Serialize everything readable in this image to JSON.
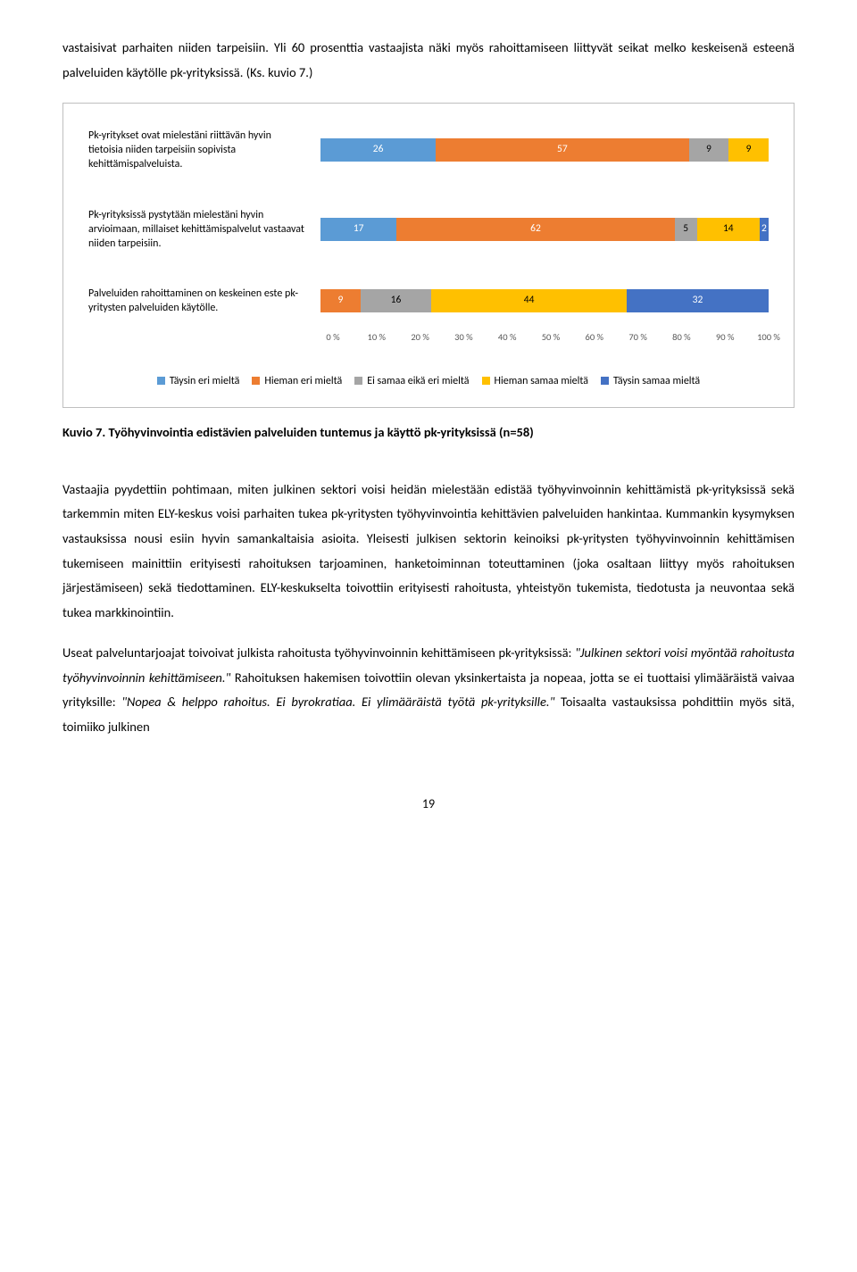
{
  "colors": {
    "c1": "#5b9bd5",
    "c2": "#ed7d31",
    "c3": "#a5a5a5",
    "c4": "#ffc000",
    "c5": "#4472c4",
    "grid": "#d9d9d9",
    "border": "#bfbfbf"
  },
  "intro": "vastaisivat parhaiten niiden tarpeisiin. Yli 60 prosenttia vastaajista näki myös rahoittamiseen liittyvät seikat melko keskeisenä esteenä palveluiden käytölle pk-yrityksissä. (Ks. kuvio 7.)",
  "chart": {
    "rows": [
      {
        "label": "Pk-yritykset ovat mielestäni riittävän hyvin tietoisia niiden tarpeisiin sopivista kehittämispalveluista.",
        "segments": [
          {
            "value": 26,
            "label": "26",
            "color": "#5b9bd5"
          },
          {
            "value": 57,
            "label": "57",
            "color": "#ed7d31"
          },
          {
            "value": 9,
            "label": "9",
            "color": "#a5a5a5"
          },
          {
            "value": 9,
            "label": "9",
            "color": "#ffc000"
          }
        ]
      },
      {
        "label": "Pk-yrityksissä pystytään mielestäni hyvin arvioimaan, millaiset kehittämispalvelut vastaavat niiden tarpeisiin.",
        "segments": [
          {
            "value": 17,
            "label": "17",
            "color": "#5b9bd5"
          },
          {
            "value": 62,
            "label": "62",
            "color": "#ed7d31"
          },
          {
            "value": 5,
            "label": "5",
            "color": "#a5a5a5"
          },
          {
            "value": 14,
            "label": "14",
            "color": "#ffc000"
          },
          {
            "value": 2,
            "label": "2",
            "color": "#4472c4"
          }
        ]
      },
      {
        "label": "Palveluiden rahoittaminen on keskeinen este pk-yritysten palveluiden käytölle.",
        "segments": [
          {
            "value": 9,
            "label": "9",
            "color": "#ed7d31"
          },
          {
            "value": 16,
            "label": "16",
            "color": "#a5a5a5"
          },
          {
            "value": 44,
            "label": "44",
            "color": "#ffc000"
          },
          {
            "value": 32,
            "label": "32",
            "color": "#4472c4"
          }
        ]
      }
    ],
    "axis": [
      "0 %",
      "10 %",
      "20 %",
      "30 %",
      "40 %",
      "50 %",
      "60 %",
      "70 %",
      "80 %",
      "90 %",
      "100 %"
    ],
    "legend": [
      {
        "label": "Täysin eri mieltä",
        "color": "#5b9bd5"
      },
      {
        "label": "Hieman eri mieltä",
        "color": "#ed7d31"
      },
      {
        "label": "Ei samaa eikä eri mieltä",
        "color": "#a5a5a5"
      },
      {
        "label": "Hieman samaa mieltä",
        "color": "#ffc000"
      },
      {
        "label": "Täysin samaa mieltä",
        "color": "#4472c4"
      }
    ]
  },
  "caption": "Kuvio 7. Työhyvinvointia edistävien palveluiden tuntemus ja käyttö pk-yrityksissä (n=58)",
  "body1": "Vastaajia pyydettiin pohtimaan, miten julkinen sektori voisi heidän mielestään edistää työhyvinvoinnin kehittämistä pk-yrityksissä sekä tarkemmin miten ELY-keskus voisi parhaiten tukea pk-yritysten työhyvinvointia kehittävien palveluiden hankintaa. Kummankin kysymyksen vastauksissa nousi esiin hyvin samankaltaisia asioita. Yleisesti julkisen sektorin keinoiksi pk-yritysten työhyvinvoinnin kehittämisen tukemiseen mainittiin erityisesti rahoituksen tarjoaminen, hanketoiminnan toteuttaminen (joka osaltaan liittyy myös rahoituksen järjestämiseen) sekä tiedottaminen. ELY-keskukselta toivottiin erityisesti rahoitusta, yhteistyön tukemista, tiedotusta ja neuvontaa sekä tukea markkinointiin.",
  "body2a": "Useat palveluntarjoajat toivoivat julkista rahoitusta työhyvinvoinnin kehittämiseen pk-yrityksissä: ",
  "body2q1": "\"Julkinen sektori voisi myöntää rahoitusta työhyvinvoinnin kehittämiseen.\"",
  "body2b": " Rahoituksen hakemisen toivottiin olevan yksinkertaista ja nopeaa, jotta se ei tuottaisi ylimääräistä vaivaa yrityksille: ",
  "body2q2": "\"Nopea & helppo rahoitus. Ei byrokratiaa. Ei ylimääräistä työtä pk-yrityksille.\"",
  "body2c": " Toisaalta vastauksissa pohdittiin myös sitä, toimiiko julkinen",
  "pageNum": "19"
}
